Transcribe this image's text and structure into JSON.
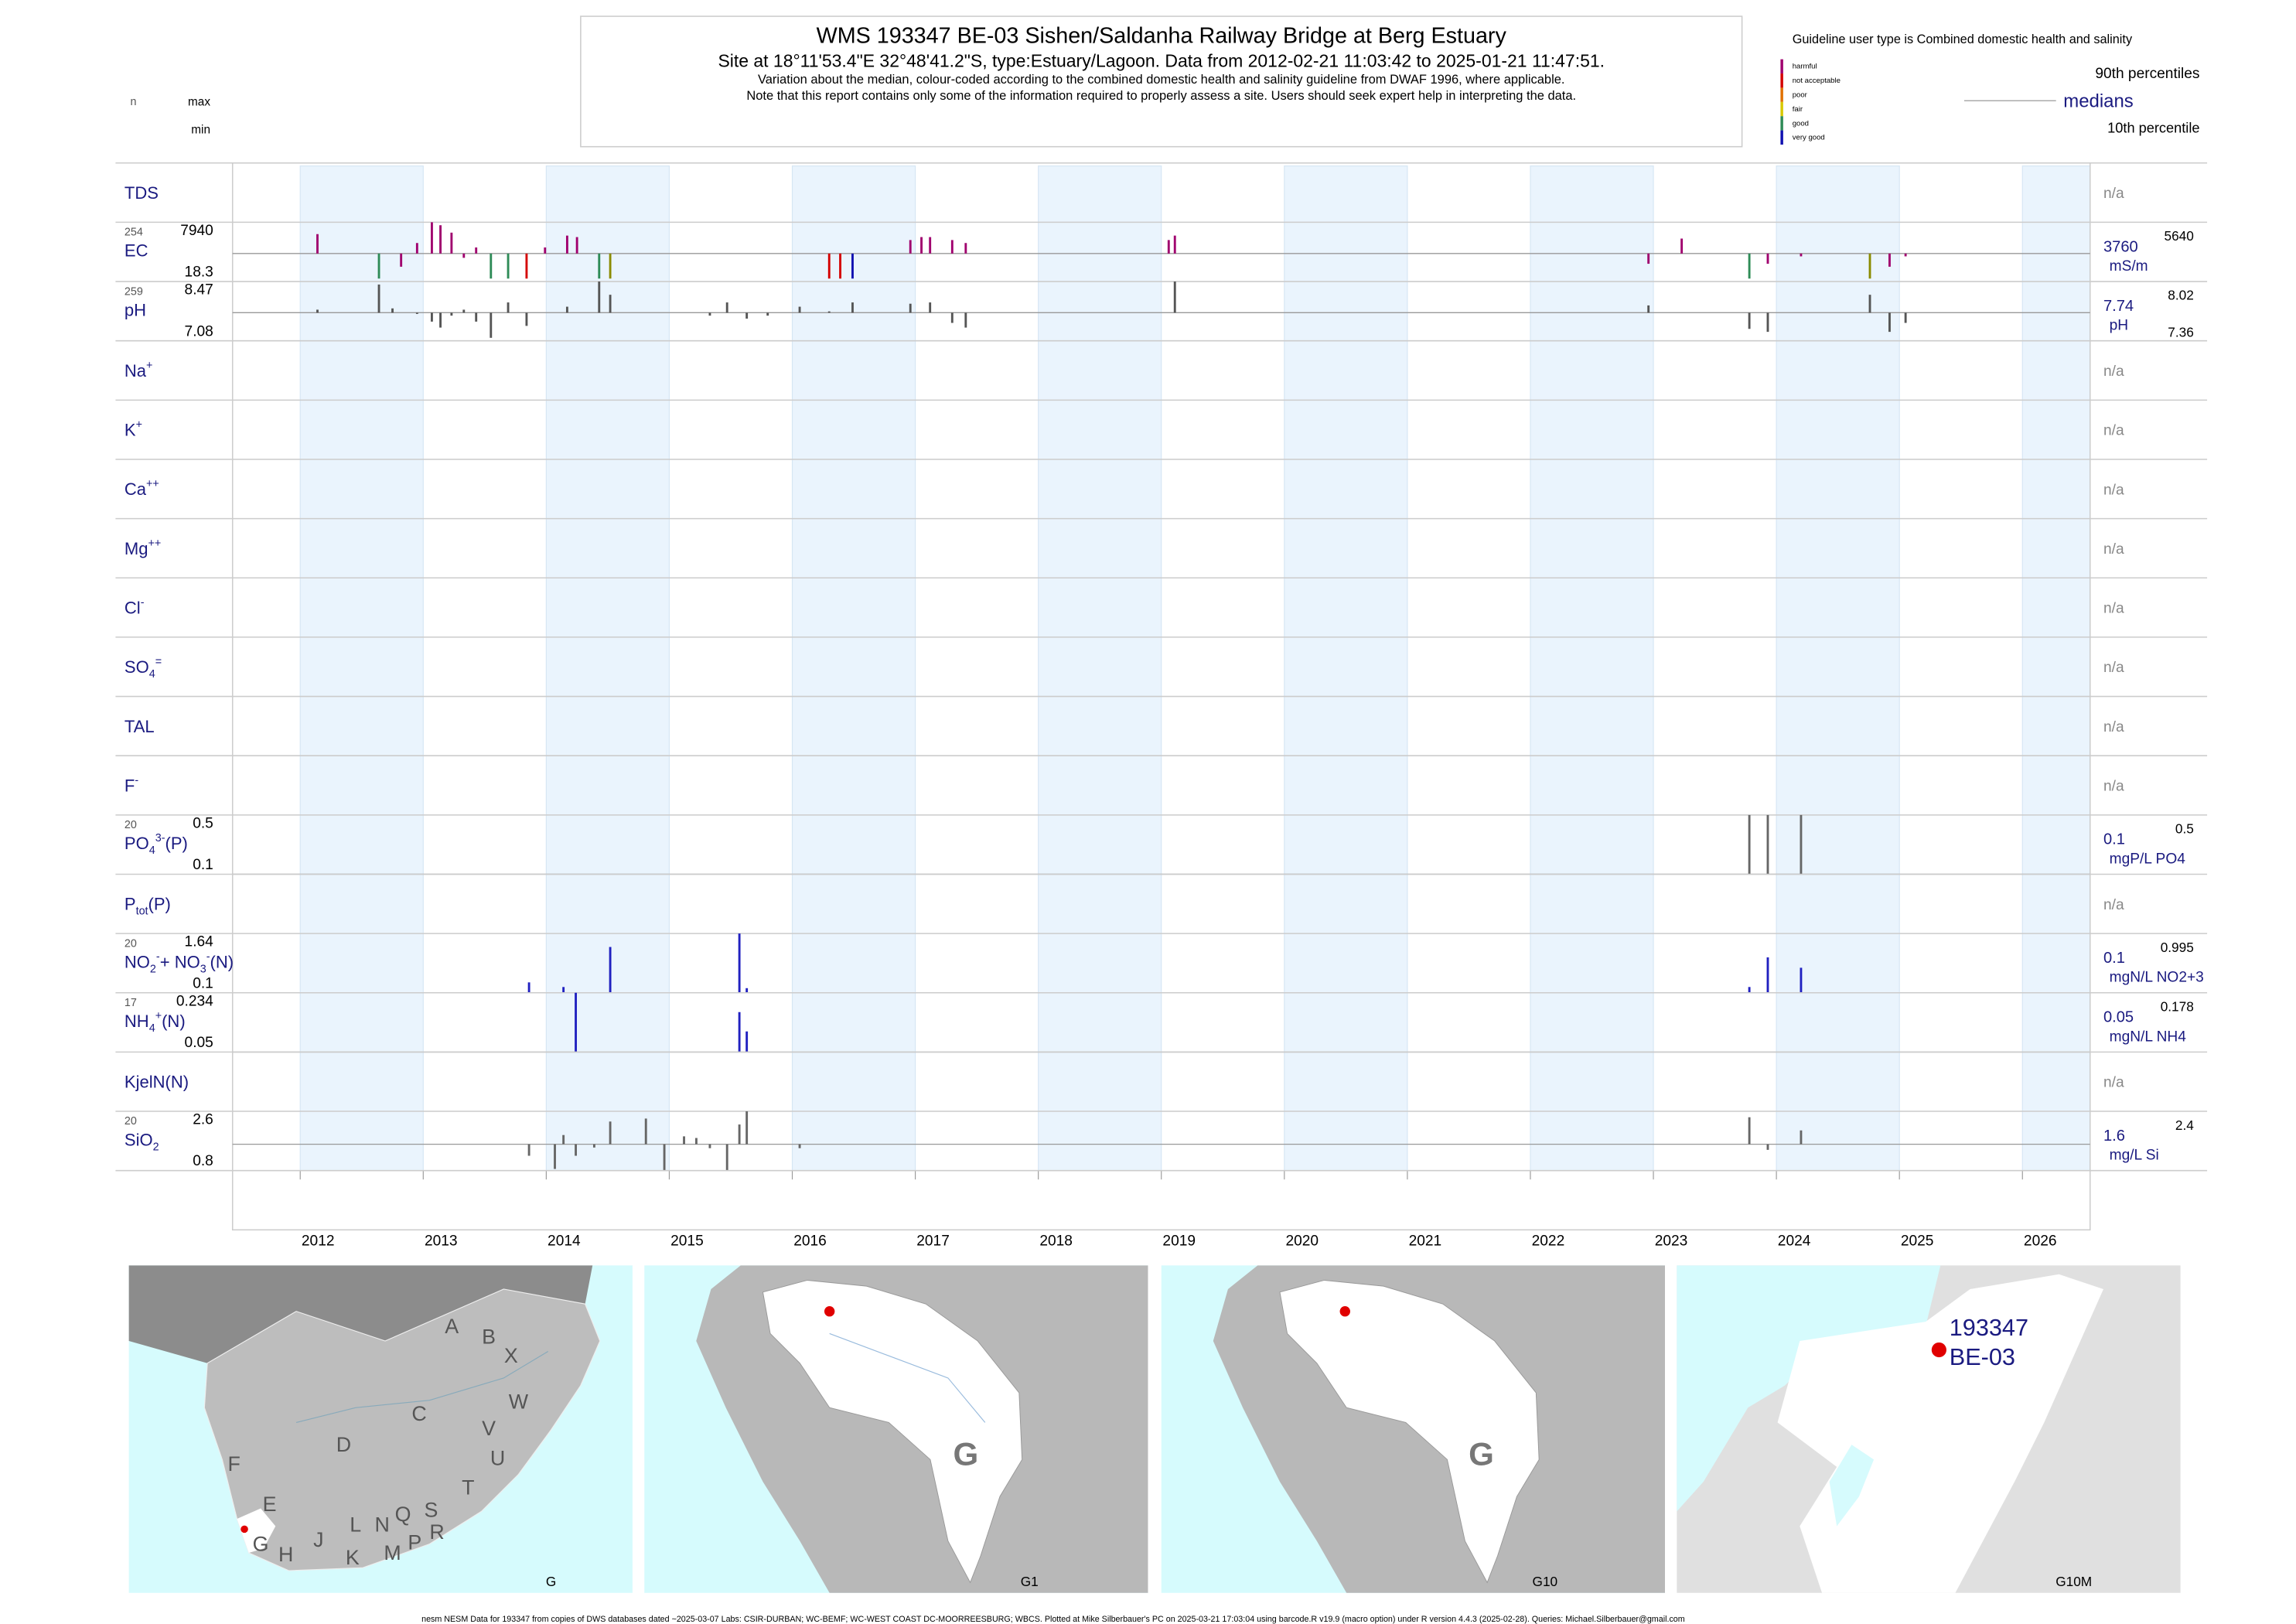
{
  "header": {
    "title": "WMS 193347 BE-03 Sishen/Saldanha Railway Bridge at Berg Estuary",
    "subtitle": "Site at 18°11'53.4\"E 32°48'41.2\"S, type:Estuary/Lagoon.  Data from 2012-02-21 11:03:42 to 2025-01-21 11:47:51.",
    "note1": "Variation about the median,  colour-coded according to the combined domestic health and salinity guideline from DWAF 1996, where applicable.",
    "note2": "Note that this report contains only some of the information required to properly assess a site. Users should seek expert help in interpreting the data."
  },
  "key": {
    "n": "n",
    "max": "max",
    "min": "min"
  },
  "legend": {
    "guideline": "Guideline user type is Combined domestic health and salinity",
    "scale": [
      {
        "label": "harmful",
        "color": "#a0006e"
      },
      {
        "label": "not acceptable",
        "color": "#d40000"
      },
      {
        "label": "poor",
        "color": "#e07000"
      },
      {
        "label": "fair",
        "color": "#d8c800"
      },
      {
        "label": "good",
        "color": "#2e8b57"
      },
      {
        "label": "very good",
        "color": "#1010b0"
      }
    ],
    "p90": "90th percentiles",
    "median": "medians",
    "p10": "10th percentile"
  },
  "axis": {
    "xlim": [
      2011.45,
      2026.55
    ],
    "years": [
      2012,
      2013,
      2014,
      2015,
      2016,
      2017,
      2018,
      2019,
      2020,
      2021,
      2022,
      2023,
      2024,
      2025,
      2026
    ]
  },
  "rows": [
    {
      "label": [
        [
          "TDS",
          "normal"
        ]
      ],
      "right": "n/a"
    },
    {
      "label": [
        [
          "EC",
          "normal"
        ]
      ],
      "n": 254,
      "max": 7940,
      "min": 18.3,
      "median": 3760,
      "units": "mS/m",
      "p90": 5640,
      "x": [
        2012.14,
        2012.64,
        2012.82,
        2012.95,
        2013.07,
        2013.14,
        2013.23,
        2013.33,
        2013.43,
        2013.55,
        2013.69,
        2013.84,
        2013.99,
        2014.17,
        2014.25,
        2014.43,
        2014.52,
        2016.3,
        2016.39,
        2016.49,
        2016.96,
        2017.05,
        2017.12,
        2017.3,
        2017.41,
        2019.06,
        2019.11,
        2022.96,
        2023.23,
        2023.78,
        2023.93,
        2024.2,
        2024.76,
        2024.92,
        2025.05
      ],
      "values": [
        6355,
        414,
        1999,
        5167,
        7940,
        7543,
        6553,
        3187,
        4573,
        414,
        414,
        414,
        4573,
        6158,
        5959,
        414,
        414,
        414,
        414,
        414,
        5563,
        5959,
        5959,
        5563,
        5167,
        5563,
        6158,
        2395,
        5761,
        414,
        2395,
        3385,
        414,
        1999,
        3385
      ],
      "colors": [
        "#a0006e",
        "#2e8b57",
        "#a0006e",
        "#a0006e",
        "#a0006e",
        "#a0006e",
        "#a0006e",
        "#a0006e",
        "#a0006e",
        "#2e8b57",
        "#2e8b57",
        "#d40000",
        "#a0006e",
        "#a0006e",
        "#a0006e",
        "#2e8b57",
        "#8b8b00",
        "#d40000",
        "#d40000",
        "#1010b0",
        "#a0006e",
        "#a0006e",
        "#a0006e",
        "#a0006e",
        "#a0006e",
        "#a0006e",
        "#a0006e",
        "#a0006e",
        "#a0006e",
        "#2e8b57",
        "#a0006e",
        "#a0006e",
        "#8b8b00",
        "#a0006e",
        "#a0006e"
      ]
    },
    {
      "label": [
        [
          "pH",
          "normal"
        ]
      ],
      "n": 259,
      "max": 8.47,
      "min": 7.08,
      "median": 7.74,
      "units": "pH",
      "p90": 8.02,
      "p10": 7.36,
      "x": [
        2012.14,
        2012.64,
        2012.75,
        2012.95,
        2013.07,
        2013.14,
        2013.23,
        2013.33,
        2013.43,
        2013.55,
        2013.69,
        2013.84,
        2014.17,
        2014.43,
        2014.52,
        2015.33,
        2015.47,
        2015.63,
        2015.8,
        2016.06,
        2016.3,
        2016.49,
        2016.96,
        2017.12,
        2017.3,
        2017.41,
        2019.11,
        2022.96,
        2023.78,
        2023.93,
        2024.76,
        2024.92,
        2025.05
      ],
      "values": [
        7.81,
        8.4,
        7.84,
        7.71,
        7.53,
        7.39,
        7.67,
        7.81,
        7.53,
        7.15,
        7.98,
        7.43,
        7.88,
        8.47,
        8.16,
        7.67,
        7.98,
        7.6,
        7.67,
        7.88,
        7.77,
        7.98,
        7.95,
        7.98,
        7.5,
        7.39,
        8.47,
        7.91,
        7.36,
        7.29,
        8.16,
        7.29,
        7.5
      ],
      "color": "#555555"
    },
    {
      "label": [
        [
          "Na",
          "normal"
        ],
        [
          "+",
          "sup"
        ]
      ],
      "right": "n/a"
    },
    {
      "label": [
        [
          "K",
          "normal"
        ],
        [
          "+",
          "sup"
        ]
      ],
      "right": "n/a"
    },
    {
      "label": [
        [
          "Ca",
          "normal"
        ],
        [
          "++",
          "sup"
        ]
      ],
      "right": "n/a"
    },
    {
      "label": [
        [
          "Mg",
          "normal"
        ],
        [
          "++",
          "sup"
        ]
      ],
      "right": "n/a"
    },
    {
      "label": [
        [
          "Cl",
          "normal"
        ],
        [
          "-",
          "sup"
        ]
      ],
      "right": "n/a"
    },
    {
      "label": [
        [
          "SO",
          "normal"
        ],
        [
          "4",
          "sub"
        ],
        [
          "=",
          "sup"
        ]
      ],
      "right": "n/a"
    },
    {
      "label": [
        [
          "TAL",
          "normal"
        ]
      ],
      "right": "n/a"
    },
    {
      "label": [
        [
          "F",
          "normal"
        ],
        [
          "-",
          "sup"
        ]
      ],
      "right": "n/a"
    },
    {
      "label": [
        [
          "PO",
          "normal"
        ],
        [
          "4",
          "sub"
        ],
        [
          "3-",
          "sup"
        ],
        [
          "(P)",
          "normal"
        ]
      ],
      "n": 20,
      "max": 0.5,
      "min": 0.1,
      "median": 0.1,
      "units": "mgP/L PO4",
      "p90": 0.5,
      "x": [
        2023.78,
        2023.93,
        2024.2
      ],
      "values": [
        0.5,
        0.5,
        0.5
      ],
      "color": "#666666"
    },
    {
      "label": [
        [
          "P",
          "normal"
        ],
        [
          "tot",
          "sub"
        ],
        [
          "(P)",
          "normal"
        ]
      ],
      "right": "n/a"
    },
    {
      "label": [
        [
          "NO",
          "normal"
        ],
        [
          "2",
          "sub"
        ],
        [
          "-",
          "sup"
        ],
        [
          "+ NO",
          "normal"
        ],
        [
          "3",
          "sub"
        ],
        [
          "-",
          "sup"
        ],
        [
          "(N)",
          "normal"
        ]
      ],
      "n": 20,
      "max": 1.64,
      "min": 0.1,
      "median": 0.1,
      "units": "mgN/L NO2+3",
      "p90": 0.995,
      "x": [
        2013.86,
        2014.14,
        2014.52,
        2015.57,
        2015.63,
        2023.78,
        2023.93,
        2024.2
      ],
      "values": [
        0.37,
        0.25,
        1.29,
        1.64,
        0.22,
        0.25,
        1.02,
        0.75
      ],
      "color": "#2020c0"
    },
    {
      "label": [
        [
          "NH",
          "normal"
        ],
        [
          "4",
          "sub"
        ],
        [
          "+",
          "sup"
        ],
        [
          "(N)",
          "normal"
        ]
      ],
      "n": 17,
      "max": 0.234,
      "min": 0.05,
      "median": 0.05,
      "units": "mgN/L NH4",
      "p90": 0.178,
      "x": [
        2014.24,
        2015.57,
        2015.63
      ],
      "values": [
        0.234,
        0.174,
        0.114
      ],
      "color": "#2020c0"
    },
    {
      "label": [
        [
          "KjelN(N)",
          "normal"
        ]
      ],
      "right": "n/a"
    },
    {
      "label": [
        [
          "SiO",
          "normal"
        ],
        [
          "2",
          "sub"
        ]
      ],
      "n": 20,
      "max": 2.6,
      "min": 0.8,
      "median": 1.6,
      "units": "mg/L Si",
      "p90": 2.4,
      "x": [
        2013.86,
        2014.07,
        2014.14,
        2014.24,
        2014.39,
        2014.52,
        2014.81,
        2014.96,
        2015.12,
        2015.22,
        2015.33,
        2015.47,
        2015.57,
        2015.63,
        2016.06,
        2023.78,
        2023.93,
        2024.2
      ],
      "values": [
        1.25,
        0.85,
        1.88,
        1.25,
        1.5,
        2.29,
        2.38,
        0.8,
        1.84,
        1.79,
        1.48,
        0.8,
        2.2,
        2.6,
        1.48,
        2.42,
        1.43,
        2.02
      ],
      "color": "#666666"
    }
  ],
  "maps": [
    {
      "label": "G",
      "letters": [
        "A",
        "B",
        "X",
        "W",
        "C",
        "V",
        "U",
        "D",
        "F",
        "T",
        "E",
        "S",
        "Q",
        "L",
        "N",
        "R",
        "G",
        "P",
        "M",
        "H",
        "J",
        "K"
      ]
    },
    {
      "label": "G1",
      "region": "G"
    },
    {
      "label": "G10",
      "region": "G"
    },
    {
      "label": "G10M",
      "site": [
        "193347",
        "BE-03"
      ]
    }
  ],
  "footer": "nesm NESM Data for 193347 from copies of DWS databases dated ~2025-03-07 Labs: CSIR-DURBAN; WC-BEMF; WC-WEST COAST DC-MOORREESBURG; WBCS. Plotted at Mike Silberbauer's PC on 2025-03-21 17:03:04 using barcode.R v19.9 (macro option) under R version 4.4.3 (2025-02-28). Queries: Michael.Silberbauer@gmail.com"
}
